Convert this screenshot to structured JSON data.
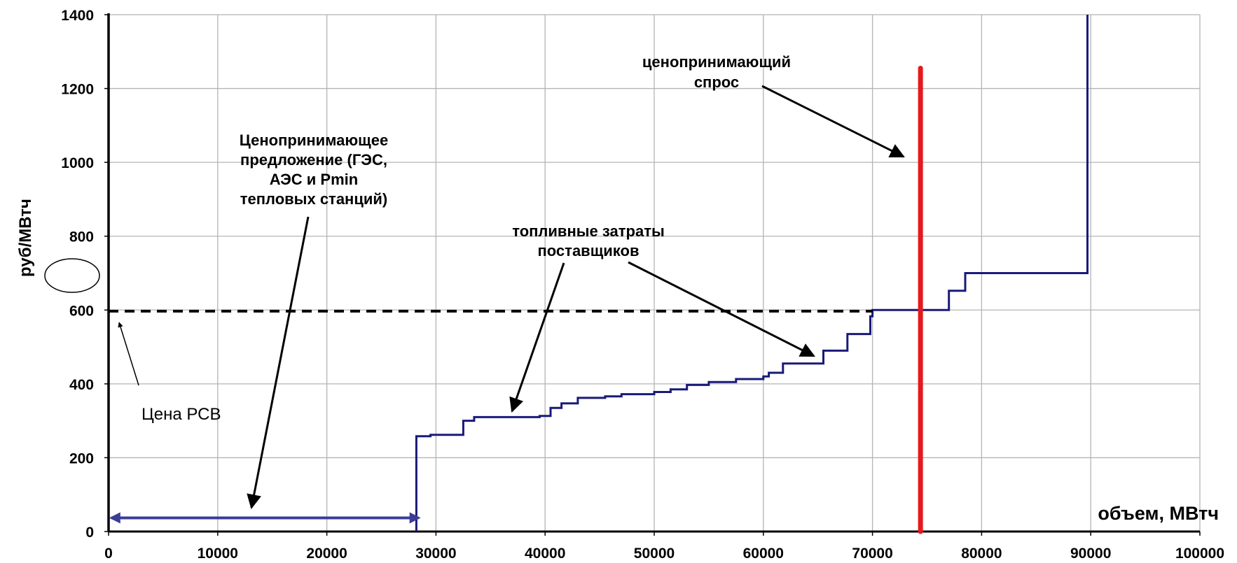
{
  "chart_data": {
    "type": "line",
    "xlabel": "объем, МВтч",
    "ylabel": "руб/МВтч",
    "xlim": [
      0,
      100000
    ],
    "ylim": [
      0,
      1400
    ],
    "x_ticks": [
      "0",
      "10000",
      "20000",
      "30000",
      "40000",
      "50000",
      "60000",
      "70000",
      "80000",
      "90000",
      "100000"
    ],
    "y_ticks": [
      "0",
      "200",
      "400",
      "600",
      "800",
      "1000",
      "1200",
      "1400"
    ],
    "grid": true,
    "series": [
      {
        "role": "supply",
        "style": "step",
        "color": "#1a1a78",
        "points": [
          [
            28200,
            0
          ],
          [
            28200,
            258
          ],
          [
            29500,
            258
          ],
          [
            29500,
            262
          ],
          [
            32500,
            262
          ],
          [
            32500,
            300
          ],
          [
            33500,
            300
          ],
          [
            33500,
            310
          ],
          [
            39500,
            310
          ],
          [
            39500,
            313
          ],
          [
            40500,
            313
          ],
          [
            40500,
            335
          ],
          [
            41500,
            335
          ],
          [
            41500,
            347
          ],
          [
            43000,
            347
          ],
          [
            43000,
            362
          ],
          [
            45500,
            362
          ],
          [
            45500,
            366
          ],
          [
            47000,
            366
          ],
          [
            47000,
            372
          ],
          [
            50000,
            372
          ],
          [
            50000,
            378
          ],
          [
            51500,
            378
          ],
          [
            51500,
            385
          ],
          [
            53000,
            385
          ],
          [
            53000,
            397
          ],
          [
            55000,
            397
          ],
          [
            55000,
            405
          ],
          [
            57500,
            405
          ],
          [
            57500,
            413
          ],
          [
            60000,
            413
          ],
          [
            60000,
            420
          ],
          [
            60500,
            420
          ],
          [
            60500,
            430
          ],
          [
            61800,
            430
          ],
          [
            61800,
            455
          ],
          [
            65500,
            455
          ],
          [
            65500,
            490
          ],
          [
            67700,
            490
          ],
          [
            67700,
            535
          ],
          [
            69800,
            535
          ],
          [
            69800,
            583
          ],
          [
            70000,
            583
          ],
          [
            70000,
            600
          ],
          [
            77000,
            600
          ],
          [
            77000,
            652
          ],
          [
            78500,
            652
          ],
          [
            78500,
            700
          ],
          [
            89700,
            700
          ],
          [
            89700,
            1400
          ]
        ]
      },
      {
        "role": "demand",
        "style": "vertical",
        "color": "#e41a1c",
        "x": 74400,
        "y_range": [
          0,
          1255
        ]
      },
      {
        "role": "price",
        "style": "dashed",
        "color": "#000000",
        "y": 597
      }
    ],
    "range_arrow": {
      "x_from": 0,
      "x_to": 28400,
      "y": 37,
      "color": "#3c3c96"
    },
    "annotations": {
      "demand": [
        "ценопринимающий",
        "спрос"
      ],
      "offer": [
        "Ценопринимающее",
        "предложение (ГЭС,",
        "АЭС и Pmin",
        "тепловых станций)"
      ],
      "fuel": [
        "топливные затраты",
        "поставщиков"
      ],
      "price": "Цена РСВ"
    },
    "highlighted_tick": "600"
  }
}
